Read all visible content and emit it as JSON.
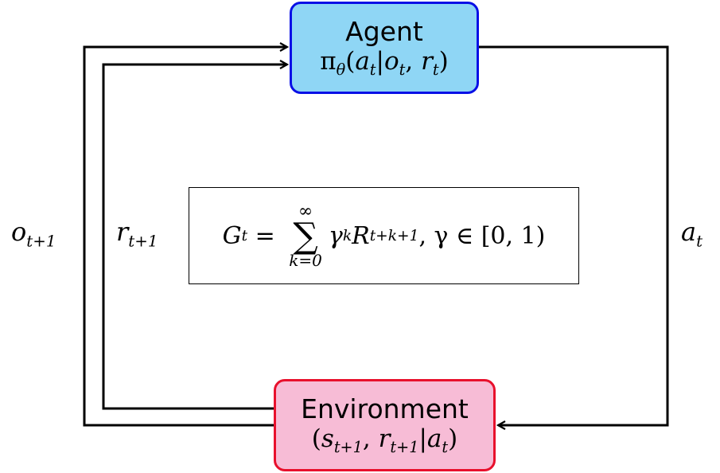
{
  "agent": {
    "title": "Agent",
    "policy": {
      "pi": "π",
      "pi_sub": "θ",
      "open": "(",
      "a": "a",
      "a_sub": "t",
      "bar": "|",
      "o": "o",
      "o_sub": "t",
      "comma": ", ",
      "r": "r",
      "r_sub": "t",
      "close": ")"
    },
    "fill_color": "#8fd6f5",
    "border_color": "#0a10e6"
  },
  "environment": {
    "title": "Environment",
    "dynamics": {
      "open": "(",
      "s": "s",
      "s_sub": "t+1",
      "comma": ", ",
      "r": "r",
      "r_sub": "t+1",
      "bar": "|",
      "a": "a",
      "a_sub": "t",
      "close": ")"
    },
    "fill_color": "#f7bcd6",
    "border_color": "#e8102c"
  },
  "signals": {
    "observation": {
      "sym": "o",
      "sub": "t+1"
    },
    "reward": {
      "sym": "r",
      "sub": "t+1"
    },
    "action": {
      "sym": "a",
      "sub": "t"
    }
  },
  "return_equation": {
    "lhs": "G",
    "lhs_sub": "t",
    "eq": " = ",
    "sum_upper": "∞",
    "sum_symbol": "∑",
    "sum_lower": "k=0",
    "gamma": "γ",
    "gamma_exp": "k",
    "R": "R",
    "R_sub": "t+k+1",
    "rest": ", γ ∈ [0, 1)"
  }
}
